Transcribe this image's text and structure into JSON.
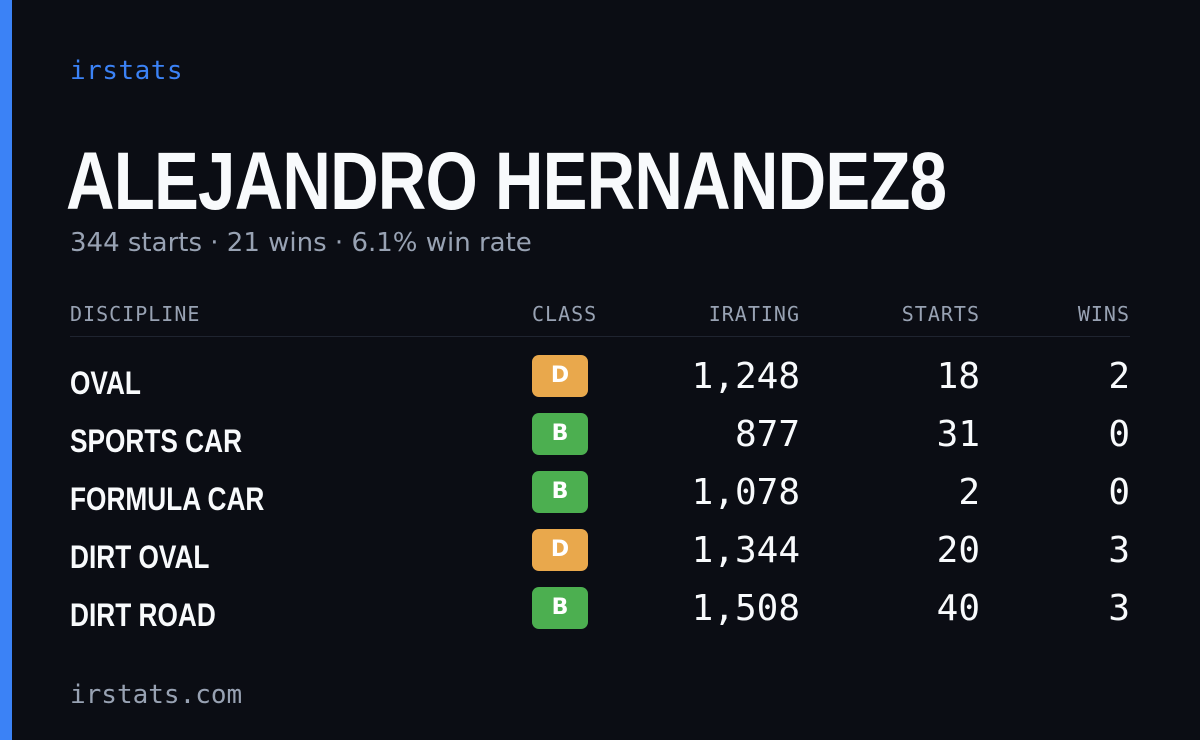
{
  "brand": "irstats",
  "driver": {
    "name": "ALEJANDRO HERNANDEZ8",
    "summary": "344 starts · 21 wins · 6.1% win rate"
  },
  "table": {
    "headers": {
      "discipline": "DISCIPLINE",
      "class": "CLASS",
      "irating": "IRATING",
      "starts": "STARTS",
      "wins": "WINS"
    },
    "rows": [
      {
        "discipline": "OVAL",
        "class": "D",
        "irating": "1,248",
        "starts": "18",
        "wins": "2"
      },
      {
        "discipline": "SPORTS CAR",
        "class": "B",
        "irating": "877",
        "starts": "31",
        "wins": "0"
      },
      {
        "discipline": "FORMULA CAR",
        "class": "B",
        "irating": "1,078",
        "starts": "2",
        "wins": "0"
      },
      {
        "discipline": "DIRT OVAL",
        "class": "D",
        "irating": "1,344",
        "starts": "20",
        "wins": "3"
      },
      {
        "discipline": "DIRT ROAD",
        "class": "B",
        "irating": "1,508",
        "starts": "40",
        "wins": "3"
      }
    ]
  },
  "class_colors": {
    "D": "#e9a84c",
    "B": "#4caf50"
  },
  "colors": {
    "accent": "#3b82f6",
    "background": "#0b0d14",
    "text": "#f8fafc",
    "muted": "#98a2b3"
  },
  "footer": "irstats.com"
}
